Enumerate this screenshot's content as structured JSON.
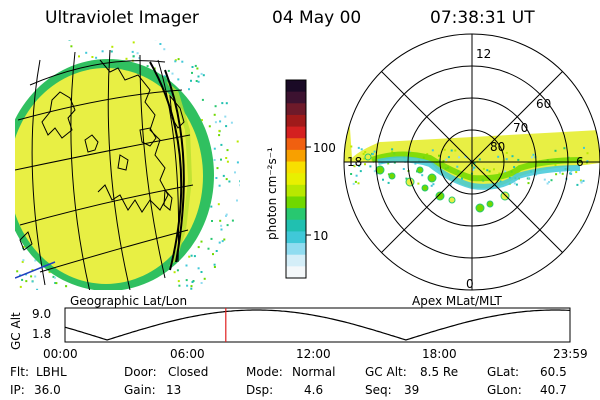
{
  "header": {
    "instrument": "Ultraviolet Imager",
    "date": "04 May 00",
    "time": "07:38:31 UT"
  },
  "colorbar": {
    "unit_label": "photon cm⁻²s⁻¹",
    "ticks": [
      "100",
      "10"
    ],
    "colors_top_to_bottom": [
      "#1a0a26",
      "#3c1230",
      "#6e1a2a",
      "#a01a1a",
      "#d42020",
      "#f06010",
      "#f8a000",
      "#f8e000",
      "#e8f000",
      "#b8e800",
      "#70d800",
      "#28c870",
      "#20c0b0",
      "#40c8d8",
      "#90dcf0",
      "#d4eef8",
      "#f4f8fa"
    ]
  },
  "left_map": {
    "label": "Geographic Lat/Lon",
    "land_color": "#e8ef44",
    "edge_color": "#30c060"
  },
  "right_map": {
    "label": "Apex MLat/MLT",
    "mlt_labels": {
      "top": "12",
      "right": "6",
      "left": "18",
      "bottom": "0"
    },
    "lat_labels": [
      "60",
      "70",
      "80"
    ]
  },
  "orbit": {
    "axis_label": "GC Alt",
    "y_ticks": [
      "9.0",
      "1.8"
    ],
    "x_ticks": [
      "00:00",
      "06:00",
      "12:00",
      "18:00",
      "23:59"
    ],
    "current_hours": 7.642,
    "marker_color": "#e02020"
  },
  "footer": {
    "row1": [
      {
        "label": "Flt:",
        "value": "LBHL"
      },
      {
        "label": "Door:",
        "value": "Closed"
      },
      {
        "label": "Mode:",
        "value": "Normal"
      },
      {
        "label": "GC Alt:",
        "value": "8.5 Re"
      },
      {
        "label": "GLat:",
        "value": "60.5"
      }
    ],
    "row2": [
      {
        "label": "IP:",
        "value": "36.0"
      },
      {
        "label": "Gain:",
        "value": "13"
      },
      {
        "label": "Dsp:",
        "value": "4.6"
      },
      {
        "label": "Seq:",
        "value": "39"
      },
      {
        "label": "GLon:",
        "value": "40.7"
      }
    ]
  }
}
